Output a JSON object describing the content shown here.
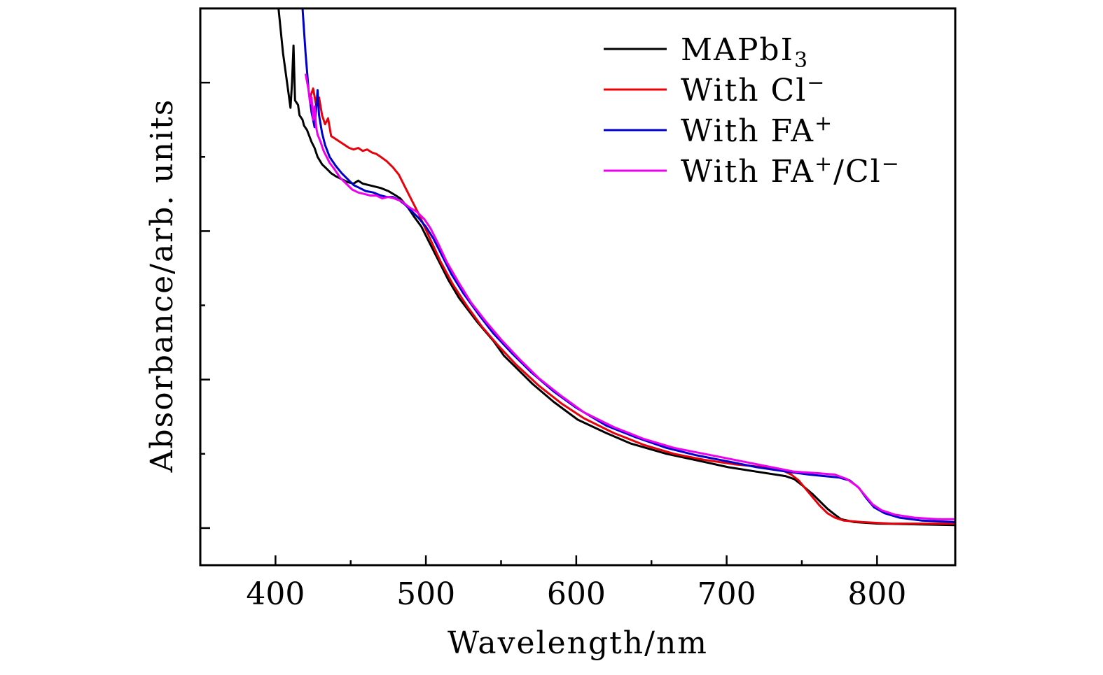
{
  "chart_data": {
    "type": "line",
    "title": "",
    "xlabel": "Wavelength/nm",
    "ylabel": "Absorbance/arb. units",
    "xlim": [
      350,
      852
    ],
    "ylim": [
      -0.25,
      3.5
    ],
    "x_ticks": [
      400,
      500,
      600,
      700,
      800
    ],
    "x_tick_labels": [
      "400",
      "500",
      "600",
      "700",
      "800"
    ],
    "x_minor_ticks": [
      450,
      550,
      650,
      750
    ],
    "y_ticks": [
      0,
      1,
      2,
      3
    ],
    "y_minor_ticks": [
      0.5,
      1.5,
      2.5
    ],
    "y_tick_labels_shown": false,
    "grid": false,
    "legend_position": "top-right",
    "series": [
      {
        "name": "MAPbI3",
        "label_main": "MAPbI",
        "label_sub": "3",
        "label_sup": "",
        "label_tail": "",
        "color": "#000000",
        "points": [
          [
            402,
            3.5
          ],
          [
            405,
            3.2
          ],
          [
            408,
            2.98
          ],
          [
            410,
            2.83
          ],
          [
            411,
            3.0
          ],
          [
            412,
            3.25
          ],
          [
            413,
            2.88
          ],
          [
            415,
            2.85
          ],
          [
            416,
            2.78
          ],
          [
            418,
            2.75
          ],
          [
            419,
            2.71
          ],
          [
            421,
            2.68
          ],
          [
            424,
            2.6
          ],
          [
            426,
            2.56
          ],
          [
            428,
            2.5
          ],
          [
            431,
            2.45
          ],
          [
            434,
            2.42
          ],
          [
            437,
            2.39
          ],
          [
            440,
            2.37
          ],
          [
            444,
            2.35
          ],
          [
            448,
            2.33
          ],
          [
            452,
            2.32
          ],
          [
            455,
            2.34
          ],
          [
            458,
            2.32
          ],
          [
            462,
            2.31
          ],
          [
            466,
            2.3
          ],
          [
            470,
            2.29
          ],
          [
            475,
            2.27
          ],
          [
            480,
            2.24
          ],
          [
            483,
            2.22
          ],
          [
            488,
            2.16
          ],
          [
            492,
            2.1
          ],
          [
            497,
            2.03
          ],
          [
            502,
            1.93
          ],
          [
            508,
            1.81
          ],
          [
            515,
            1.67
          ],
          [
            522,
            1.55
          ],
          [
            534,
            1.39
          ],
          [
            545,
            1.26
          ],
          [
            552,
            1.16
          ],
          [
            562,
            1.06
          ],
          [
            571,
            0.97
          ],
          [
            585,
            0.85
          ],
          [
            601,
            0.73
          ],
          [
            620,
            0.64
          ],
          [
            636,
            0.57
          ],
          [
            660,
            0.5
          ],
          [
            683,
            0.45
          ],
          [
            701,
            0.41
          ],
          [
            720,
            0.38
          ],
          [
            739,
            0.35
          ],
          [
            745,
            0.33
          ],
          [
            750,
            0.29
          ],
          [
            757,
            0.23
          ],
          [
            763,
            0.17
          ],
          [
            767,
            0.13
          ],
          [
            772,
            0.09
          ],
          [
            776,
            0.06
          ],
          [
            785,
            0.04
          ],
          [
            801,
            0.03
          ],
          [
            852,
            0.02
          ]
        ]
      },
      {
        "name": "With Cl-",
        "label_main": "With Cl",
        "label_sub": "",
        "label_sup": "−",
        "label_tail": "",
        "color": "#e8000b",
        "points": [
          [
            423,
            2.9
          ],
          [
            425,
            2.96
          ],
          [
            427,
            2.85
          ],
          [
            429,
            2.9
          ],
          [
            431,
            2.78
          ],
          [
            433,
            2.72
          ],
          [
            435,
            2.76
          ],
          [
            437,
            2.64
          ],
          [
            440,
            2.62
          ],
          [
            443,
            2.6
          ],
          [
            446,
            2.58
          ],
          [
            449,
            2.56
          ],
          [
            452,
            2.55
          ],
          [
            455,
            2.56
          ],
          [
            458,
            2.54
          ],
          [
            461,
            2.55
          ],
          [
            464,
            2.53
          ],
          [
            467,
            2.52
          ],
          [
            470,
            2.5
          ],
          [
            474,
            2.47
          ],
          [
            478,
            2.43
          ],
          [
            482,
            2.38
          ],
          [
            486,
            2.3
          ],
          [
            490,
            2.22
          ],
          [
            495,
            2.12
          ],
          [
            500,
            2.01
          ],
          [
            505,
            1.9
          ],
          [
            510,
            1.79
          ],
          [
            518,
            1.64
          ],
          [
            527,
            1.5
          ],
          [
            537,
            1.36
          ],
          [
            548,
            1.23
          ],
          [
            560,
            1.1
          ],
          [
            575,
            0.96
          ],
          [
            590,
            0.84
          ],
          [
            605,
            0.74
          ],
          [
            625,
            0.64
          ],
          [
            645,
            0.56
          ],
          [
            665,
            0.5
          ],
          [
            685,
            0.46
          ],
          [
            705,
            0.43
          ],
          [
            725,
            0.41
          ],
          [
            737,
            0.39
          ],
          [
            743,
            0.36
          ],
          [
            748,
            0.32
          ],
          [
            752,
            0.27
          ],
          [
            757,
            0.21
          ],
          [
            762,
            0.15
          ],
          [
            767,
            0.1
          ],
          [
            772,
            0.07
          ],
          [
            778,
            0.05
          ],
          [
            790,
            0.04
          ],
          [
            810,
            0.03
          ],
          [
            852,
            0.03
          ]
        ]
      },
      {
        "name": "With FA+",
        "label_main": "With FA",
        "label_sub": "",
        "label_sup": "+",
        "label_tail": "",
        "color": "#0000cc",
        "points": [
          [
            418,
            3.5
          ],
          [
            420,
            3.2
          ],
          [
            422,
            2.95
          ],
          [
            424,
            2.8
          ],
          [
            426,
            2.7
          ],
          [
            427,
            2.82
          ],
          [
            428,
            2.95
          ],
          [
            429,
            2.78
          ],
          [
            431,
            2.66
          ],
          [
            433,
            2.58
          ],
          [
            436,
            2.5
          ],
          [
            440,
            2.44
          ],
          [
            444,
            2.39
          ],
          [
            448,
            2.35
          ],
          [
            452,
            2.31
          ],
          [
            456,
            2.29
          ],
          [
            460,
            2.27
          ],
          [
            465,
            2.26
          ],
          [
            470,
            2.24
          ],
          [
            474,
            2.23
          ],
          [
            478,
            2.23
          ],
          [
            482,
            2.21
          ],
          [
            486,
            2.18
          ],
          [
            490,
            2.14
          ],
          [
            495,
            2.09
          ],
          [
            500,
            2.03
          ],
          [
            505,
            1.95
          ],
          [
            510,
            1.85
          ],
          [
            517,
            1.71
          ],
          [
            525,
            1.58
          ],
          [
            535,
            1.44
          ],
          [
            545,
            1.31
          ],
          [
            557,
            1.18
          ],
          [
            570,
            1.05
          ],
          [
            585,
            0.92
          ],
          [
            600,
            0.81
          ],
          [
            620,
            0.69
          ],
          [
            640,
            0.61
          ],
          [
            660,
            0.54
          ],
          [
            680,
            0.49
          ],
          [
            700,
            0.45
          ],
          [
            720,
            0.41
          ],
          [
            740,
            0.38
          ],
          [
            755,
            0.36
          ],
          [
            765,
            0.35
          ],
          [
            775,
            0.34
          ],
          [
            782,
            0.32
          ],
          [
            788,
            0.27
          ],
          [
            793,
            0.2
          ],
          [
            798,
            0.14
          ],
          [
            805,
            0.1
          ],
          [
            815,
            0.07
          ],
          [
            830,
            0.05
          ],
          [
            852,
            0.04
          ]
        ]
      },
      {
        "name": "With FA+/Cl-",
        "label_main": "With FA",
        "label_sub": "",
        "label_sup": "+",
        "label_tail": "/Cl−",
        "color": "#ee00ee",
        "points": [
          [
            420,
            3.06
          ],
          [
            422,
            2.95
          ],
          [
            423,
            2.86
          ],
          [
            424,
            2.9
          ],
          [
            425,
            2.75
          ],
          [
            426,
            2.84
          ],
          [
            427,
            2.7
          ],
          [
            428,
            2.65
          ],
          [
            430,
            2.6
          ],
          [
            432,
            2.54
          ],
          [
            434,
            2.5
          ],
          [
            436,
            2.46
          ],
          [
            439,
            2.42
          ],
          [
            443,
            2.36
          ],
          [
            447,
            2.32
          ],
          [
            451,
            2.28
          ],
          [
            455,
            2.26
          ],
          [
            459,
            2.25
          ],
          [
            463,
            2.24
          ],
          [
            467,
            2.24
          ],
          [
            471,
            2.22
          ],
          [
            475,
            2.23
          ],
          [
            479,
            2.22
          ],
          [
            484,
            2.2
          ],
          [
            489,
            2.16
          ],
          [
            494,
            2.13
          ],
          [
            499,
            2.08
          ],
          [
            503,
            2.02
          ],
          [
            508,
            1.92
          ],
          [
            514,
            1.79
          ],
          [
            522,
            1.65
          ],
          [
            530,
            1.52
          ],
          [
            540,
            1.39
          ],
          [
            550,
            1.27
          ],
          [
            562,
            1.14
          ],
          [
            575,
            1.01
          ],
          [
            590,
            0.89
          ],
          [
            605,
            0.78
          ],
          [
            625,
            0.68
          ],
          [
            645,
            0.6
          ],
          [
            665,
            0.54
          ],
          [
            685,
            0.5
          ],
          [
            705,
            0.46
          ],
          [
            725,
            0.42
          ],
          [
            745,
            0.38
          ],
          [
            760,
            0.37
          ],
          [
            772,
            0.36
          ],
          [
            780,
            0.33
          ],
          [
            787,
            0.28
          ],
          [
            792,
            0.22
          ],
          [
            797,
            0.16
          ],
          [
            803,
            0.12
          ],
          [
            812,
            0.09
          ],
          [
            825,
            0.07
          ],
          [
            840,
            0.06
          ],
          [
            852,
            0.06
          ]
        ]
      }
    ]
  }
}
